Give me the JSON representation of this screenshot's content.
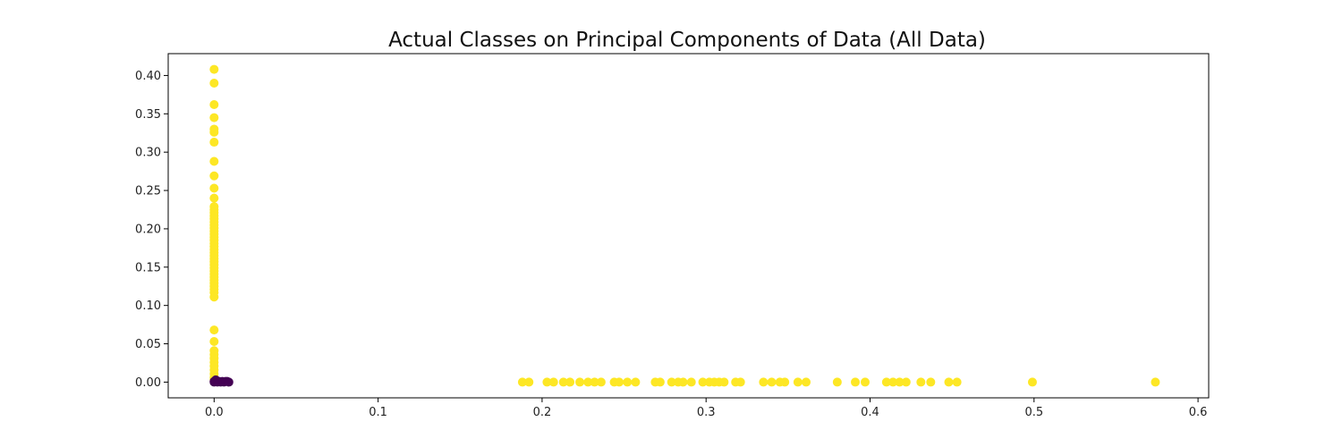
{
  "chart_data": {
    "type": "scatter",
    "title": "Actual Classes on Principal Components of Data (All Data)",
    "xlabel": "",
    "ylabel": "",
    "xlim": [
      -0.028,
      0.6065
    ],
    "ylim": [
      -0.0205,
      0.4285
    ],
    "grid": false,
    "legend": "none",
    "x_ticks": [
      0.0,
      0.1,
      0.2,
      0.3,
      0.4,
      0.5,
      0.6
    ],
    "x_tick_labels": [
      "0.0",
      "0.1",
      "0.2",
      "0.3",
      "0.4",
      "0.5",
      "0.6"
    ],
    "y_ticks": [
      0.0,
      0.05,
      0.1,
      0.15,
      0.2,
      0.25,
      0.3,
      0.35,
      0.4
    ],
    "y_tick_labels": [
      "0.00",
      "0.05",
      "0.10",
      "0.15",
      "0.20",
      "0.25",
      "0.30",
      "0.35",
      "0.40"
    ],
    "series": [
      {
        "color": "#fde725",
        "points": [
          [
            0,
            0.408
          ],
          [
            0,
            0.39
          ],
          [
            0,
            0.362
          ],
          [
            0,
            0.345
          ],
          [
            0,
            0.33
          ],
          [
            0,
            0.326
          ],
          [
            0,
            0.313
          ],
          [
            0,
            0.288
          ],
          [
            0,
            0.269
          ],
          [
            0,
            0.253
          ],
          [
            0,
            0.24
          ],
          [
            0,
            0.229
          ],
          [
            0,
            0.225
          ],
          [
            0,
            0.221
          ],
          [
            0,
            0.217
          ],
          [
            0,
            0.213
          ],
          [
            0,
            0.209
          ],
          [
            0,
            0.205
          ],
          [
            0,
            0.201
          ],
          [
            0,
            0.197
          ],
          [
            0,
            0.193
          ],
          [
            0,
            0.189
          ],
          [
            0,
            0.185
          ],
          [
            0,
            0.181
          ],
          [
            0,
            0.177
          ],
          [
            0,
            0.173
          ],
          [
            0,
            0.169
          ],
          [
            0,
            0.165
          ],
          [
            0,
            0.161
          ],
          [
            0,
            0.157
          ],
          [
            0,
            0.153
          ],
          [
            0,
            0.149
          ],
          [
            0,
            0.145
          ],
          [
            0,
            0.141
          ],
          [
            0,
            0.137
          ],
          [
            0,
            0.133
          ],
          [
            0,
            0.129
          ],
          [
            0,
            0.125
          ],
          [
            0,
            0.121
          ],
          [
            0,
            0.117
          ],
          [
            0,
            0.111
          ],
          [
            0,
            0.068
          ],
          [
            0,
            0.053
          ],
          [
            0,
            0.041
          ],
          [
            0,
            0.036
          ],
          [
            0,
            0.031
          ],
          [
            0,
            0.026
          ],
          [
            0,
            0.021
          ],
          [
            0,
            0.016
          ],
          [
            0,
            0.011
          ],
          [
            0,
            0.006
          ],
          [
            0,
            0.003
          ],
          [
            0.188,
            0
          ],
          [
            0.192,
            0
          ],
          [
            0.203,
            0
          ],
          [
            0.207,
            0
          ],
          [
            0.213,
            0
          ],
          [
            0.217,
            0
          ],
          [
            0.223,
            0
          ],
          [
            0.228,
            0
          ],
          [
            0.232,
            0
          ],
          [
            0.236,
            0
          ],
          [
            0.244,
            0
          ],
          [
            0.247,
            0
          ],
          [
            0.252,
            0
          ],
          [
            0.257,
            0
          ],
          [
            0.269,
            0
          ],
          [
            0.272,
            0
          ],
          [
            0.279,
            0
          ],
          [
            0.283,
            0
          ],
          [
            0.286,
            0
          ],
          [
            0.291,
            0
          ],
          [
            0.298,
            0
          ],
          [
            0.302,
            0
          ],
          [
            0.305,
            0
          ],
          [
            0.308,
            0
          ],
          [
            0.311,
            0
          ],
          [
            0.318,
            0
          ],
          [
            0.321,
            0
          ],
          [
            0.335,
            0
          ],
          [
            0.34,
            0
          ],
          [
            0.345,
            0
          ],
          [
            0.348,
            0
          ],
          [
            0.356,
            0
          ],
          [
            0.361,
            0
          ],
          [
            0.38,
            0
          ],
          [
            0.391,
            0
          ],
          [
            0.397,
            0
          ],
          [
            0.41,
            0
          ],
          [
            0.414,
            0
          ],
          [
            0.418,
            0
          ],
          [
            0.422,
            0
          ],
          [
            0.431,
            0
          ],
          [
            0.437,
            0
          ],
          [
            0.448,
            0
          ],
          [
            0.453,
            0
          ],
          [
            0.499,
            0
          ],
          [
            0.574,
            0
          ]
        ]
      },
      {
        "color": "#440154",
        "points": [
          [
            0.0,
            0.001
          ],
          [
            0.001,
            0.001
          ],
          [
            0.002,
            0.0
          ],
          [
            0.003,
            0.001
          ],
          [
            0.004,
            0.0
          ],
          [
            0.005,
            0.001
          ],
          [
            0.006,
            0.0
          ],
          [
            0.007,
            0.001
          ],
          [
            0.008,
            0.001
          ],
          [
            0.009,
            0.0
          ],
          [
            0.001,
            0.003
          ],
          [
            0.0,
            0.0
          ]
        ]
      }
    ]
  }
}
